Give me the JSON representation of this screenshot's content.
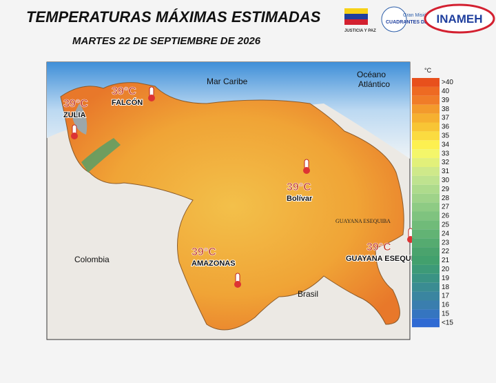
{
  "header": {
    "title": "TEMPERATURAS MÁXIMAS ESTIMADAS",
    "subtitle": "MARTES 22 DE SEPTIEMBRE DE 2026"
  },
  "logos": {
    "justicia": "JUSTICIA Y PAZ",
    "mision": "Gran Misión",
    "cuadrantes": "CUADRANTES DE PAZ",
    "inameh": "INAMEH"
  },
  "map_labels": [
    "Mar Caribe",
    "Océano",
    "Atlántico",
    "Colombia",
    "Brasil",
    "GUAYANA ESEQUIBA"
  ],
  "callouts": [
    {
      "temp": "39°C",
      "region": "FALCÓN"
    },
    {
      "temp": "39°C",
      "region": "ZULIA"
    },
    {
      "temp": "39°C",
      "region": "Bolívar"
    },
    {
      "temp": "39°C",
      "region": "AMAZONAS"
    },
    {
      "temp": "39°C",
      "region": "GUAYANA ESEQUIBA."
    }
  ],
  "legend": {
    "unit": "°C",
    "items": [
      {
        "label": ">40",
        "color": "#e8501c"
      },
      {
        "label": "40",
        "color": "#ee6a22"
      },
      {
        "label": "39",
        "color": "#f07c28"
      },
      {
        "label": "38",
        "color": "#f39a2c"
      },
      {
        "label": "37",
        "color": "#f6b030"
      },
      {
        "label": "36",
        "color": "#f8c535"
      },
      {
        "label": "35",
        "color": "#fbdb40"
      },
      {
        "label": "34",
        "color": "#fdf050"
      },
      {
        "label": "33",
        "color": "#f4f66a"
      },
      {
        "label": "32",
        "color": "#e2f07a"
      },
      {
        "label": "31",
        "color": "#cfe98a"
      },
      {
        "label": "30",
        "color": "#bfe38f"
      },
      {
        "label": "29",
        "color": "#aedb8c"
      },
      {
        "label": "28",
        "color": "#9fd389"
      },
      {
        "label": "27",
        "color": "#8ecb84"
      },
      {
        "label": "26",
        "color": "#7fc37f"
      },
      {
        "label": "25",
        "color": "#70bb79"
      },
      {
        "label": "24",
        "color": "#62b374"
      },
      {
        "label": "23",
        "color": "#55ab70"
      },
      {
        "label": "22",
        "color": "#4aa36d"
      },
      {
        "label": "21",
        "color": "#42a06d"
      },
      {
        "label": "20",
        "color": "#3d9a78"
      },
      {
        "label": "19",
        "color": "#3a9384"
      },
      {
        "label": "18",
        "color": "#3a8c92"
      },
      {
        "label": "17",
        "color": "#3a85a0"
      },
      {
        "label": "16",
        "color": "#3a7eae"
      },
      {
        "label": "15",
        "color": "#3575c0"
      },
      {
        "label": "<15",
        "color": "#2f6ad3"
      }
    ]
  }
}
